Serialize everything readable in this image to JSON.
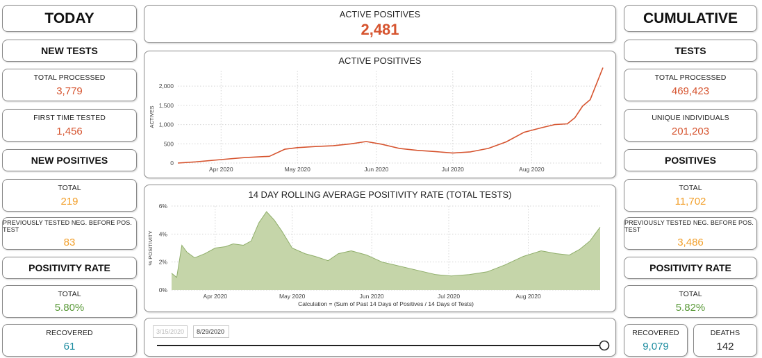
{
  "left": {
    "title": "TODAY",
    "new_tests_heading": "NEW TESTS",
    "total_processed": {
      "label": "TOTAL PROCESSED",
      "value": "3,779"
    },
    "first_time_tested": {
      "label": "FIRST TIME TESTED",
      "value": "1,456"
    },
    "new_positives_heading": "NEW POSITIVES",
    "positives_total": {
      "label": "TOTAL",
      "value": "219"
    },
    "previously_tested": {
      "label": "PREVIOUSLY TESTED NEG. BEFORE POS. TEST",
      "value": "83"
    },
    "positivity_heading": "POSITIVITY RATE",
    "positivity_total": {
      "label": "TOTAL",
      "value": "5.80%"
    },
    "recovered": {
      "label": "RECOVERED",
      "value": "61"
    }
  },
  "right": {
    "title": "CUMULATIVE",
    "tests_heading": "TESTS",
    "total_processed": {
      "label": "TOTAL PROCESSED",
      "value": "469,423"
    },
    "unique_individuals": {
      "label": "UNIQUE INDIVIDUALS",
      "value": "201,203"
    },
    "positives_heading": "POSITIVES",
    "positives_total": {
      "label": "TOTAL",
      "value": "11,702"
    },
    "previously_tested": {
      "label": "PREVIOUSLY TESTED NEG. BEFORE POS. TEST",
      "value": "3,486"
    },
    "positivity_heading": "POSITIVITY RATE",
    "positivity_total": {
      "label": "TOTAL",
      "value": "5.82%"
    },
    "recovered": {
      "label": "RECOVERED",
      "value": "9,079"
    },
    "deaths": {
      "label": "DEATHS",
      "value": "142"
    }
  },
  "center": {
    "active_kpi": {
      "label": "ACTIVE POSITIVES",
      "value": "2,481"
    },
    "date_slider": {
      "start": "3/15/2020",
      "end": "8/29/2020",
      "position": 1.0
    }
  },
  "colors": {
    "red_value": "#d6542f",
    "orange_value": "#f2a02c",
    "green_value": "#5b9a3a",
    "teal_value": "#1d8ca0",
    "line_series": "#d6542f",
    "area_fill": "#c5d5a9",
    "area_stroke": "#8fae6a"
  },
  "chart_data": [
    {
      "type": "line",
      "title": "ACTIVE POSITIVES",
      "xlabel": "",
      "ylabel": "ACTIVES",
      "xlim": [
        "2020-03-15",
        "2020-08-29"
      ],
      "ylim": [
        0,
        2400
      ],
      "yticks": [
        0,
        500,
        1000,
        1500,
        2000
      ],
      "ytick_labels": [
        "0",
        "500",
        "1,000",
        "1,500",
        "2,000"
      ],
      "xticks": [
        "2020-04-01",
        "2020-05-01",
        "2020-06-01",
        "2020-07-01",
        "2020-08-01"
      ],
      "xtick_labels": [
        "Apr 2020",
        "May 2020",
        "Jun 2020",
        "Jul 2020",
        "Aug 2020"
      ],
      "grid": true,
      "series": [
        {
          "values": [
            [
              "2020-03-15",
              0
            ],
            [
              "2020-03-22",
              30
            ],
            [
              "2020-04-01",
              90
            ],
            [
              "2020-04-10",
              140
            ],
            [
              "2020-04-20",
              175
            ],
            [
              "2020-04-26",
              360
            ],
            [
              "2020-05-01",
              400
            ],
            [
              "2020-05-08",
              430
            ],
            [
              "2020-05-15",
              450
            ],
            [
              "2020-05-22",
              500
            ],
            [
              "2020-05-28",
              560
            ],
            [
              "2020-06-03",
              490
            ],
            [
              "2020-06-10",
              380
            ],
            [
              "2020-06-17",
              330
            ],
            [
              "2020-06-24",
              300
            ],
            [
              "2020-07-01",
              260
            ],
            [
              "2020-07-08",
              290
            ],
            [
              "2020-07-15",
              380
            ],
            [
              "2020-07-22",
              550
            ],
            [
              "2020-07-29",
              800
            ],
            [
              "2020-08-05",
              920
            ],
            [
              "2020-08-10",
              1000
            ],
            [
              "2020-08-15",
              1020
            ],
            [
              "2020-08-18",
              1180
            ],
            [
              "2020-08-21",
              1480
            ],
            [
              "2020-08-24",
              1650
            ],
            [
              "2020-08-27",
              2150
            ],
            [
              "2020-08-29",
              2481
            ]
          ]
        }
      ]
    },
    {
      "type": "area",
      "title": "14 DAY ROLLING AVERAGE POSITIVITY RATE (TOTAL TESTS)",
      "xlabel": "Calculation = (Sum of Past 14 Days of Positives / 14 Days of Tests)",
      "ylabel": "% POSITIVITY",
      "xlim": [
        "2020-03-15",
        "2020-08-29"
      ],
      "ylim": [
        0,
        6
      ],
      "yticks": [
        0,
        2,
        4,
        6
      ],
      "ytick_labels": [
        "0%",
        "2%",
        "4%",
        "6%"
      ],
      "xticks": [
        "2020-04-01",
        "2020-05-01",
        "2020-06-01",
        "2020-07-01",
        "2020-08-01"
      ],
      "xtick_labels": [
        "Apr 2020",
        "May 2020",
        "Jun 2020",
        "Jul 2020",
        "Aug 2020"
      ],
      "grid": true,
      "series": [
        {
          "values": [
            [
              "2020-03-15",
              1.2
            ],
            [
              "2020-03-17",
              0.9
            ],
            [
              "2020-03-19",
              3.2
            ],
            [
              "2020-03-21",
              2.7
            ],
            [
              "2020-03-24",
              2.3
            ],
            [
              "2020-03-28",
              2.6
            ],
            [
              "2020-04-01",
              3.0
            ],
            [
              "2020-04-05",
              3.1
            ],
            [
              "2020-04-08",
              3.3
            ],
            [
              "2020-04-12",
              3.2
            ],
            [
              "2020-04-15",
              3.5
            ],
            [
              "2020-04-18",
              4.8
            ],
            [
              "2020-04-21",
              5.6
            ],
            [
              "2020-04-24",
              5.0
            ],
            [
              "2020-04-27",
              4.2
            ],
            [
              "2020-05-01",
              3.0
            ],
            [
              "2020-05-06",
              2.6
            ],
            [
              "2020-05-10",
              2.4
            ],
            [
              "2020-05-15",
              2.1
            ],
            [
              "2020-05-19",
              2.6
            ],
            [
              "2020-05-24",
              2.8
            ],
            [
              "2020-05-30",
              2.5
            ],
            [
              "2020-06-05",
              2.0
            ],
            [
              "2020-06-12",
              1.7
            ],
            [
              "2020-06-19",
              1.4
            ],
            [
              "2020-06-26",
              1.1
            ],
            [
              "2020-07-02",
              1.0
            ],
            [
              "2020-07-09",
              1.1
            ],
            [
              "2020-07-16",
              1.3
            ],
            [
              "2020-07-23",
              1.8
            ],
            [
              "2020-07-30",
              2.4
            ],
            [
              "2020-08-06",
              2.8
            ],
            [
              "2020-08-12",
              2.6
            ],
            [
              "2020-08-17",
              2.5
            ],
            [
              "2020-08-21",
              2.9
            ],
            [
              "2020-08-25",
              3.5
            ],
            [
              "2020-08-29",
              4.5
            ]
          ]
        }
      ]
    }
  ]
}
